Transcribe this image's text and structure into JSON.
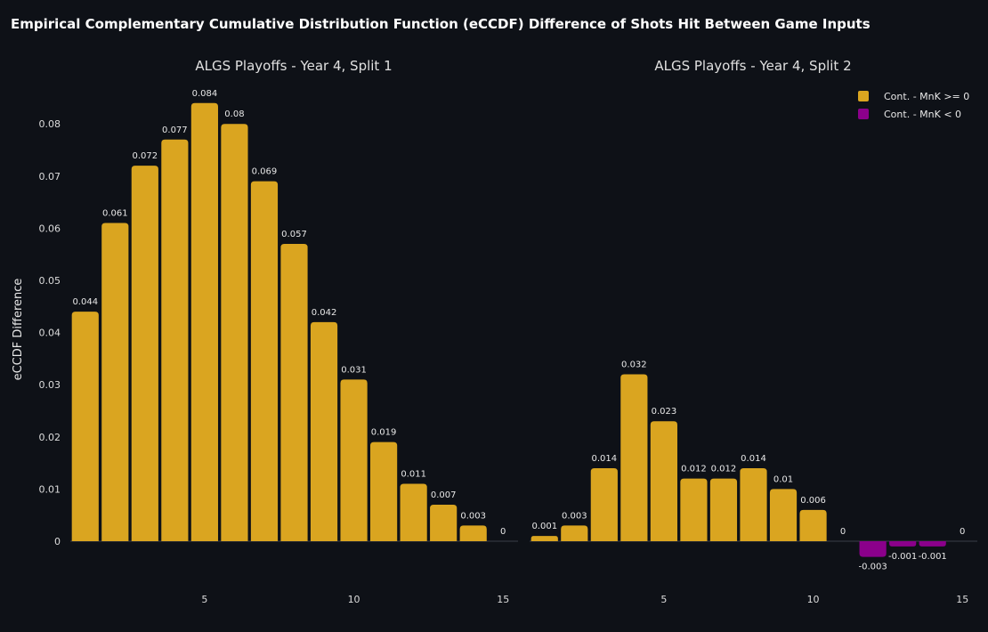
{
  "figure_title": "Empirical Complementary Cumulative Distribution Function (eCCDF) Difference of Shots Hit Between Game Inputs",
  "colors": {
    "background": "#0e1117",
    "positive": "#daa520",
    "negative": "#8b008b"
  },
  "legend": [
    {
      "label": "Cont. - MnK >= 0",
      "color": "#daa520"
    },
    {
      "label": "Cont. - MnK < 0",
      "color": "#8b008b"
    }
  ],
  "chart_data": [
    {
      "type": "bar",
      "title": "ALGS Playoffs - Year 4, Split 1",
      "ylabel": "eCCDF Difference",
      "x": [
        1,
        2,
        3,
        4,
        5,
        6,
        7,
        8,
        9,
        10,
        11,
        12,
        13,
        14,
        15
      ],
      "values": [
        0.044,
        0.061,
        0.072,
        0.077,
        0.084,
        0.08,
        0.069,
        0.057,
        0.042,
        0.031,
        0.019,
        0.011,
        0.007,
        0.003,
        0
      ],
      "value_labels": [
        "0.044",
        "0.061",
        "0.072",
        "0.077",
        "0.084",
        "0.08",
        "0.069",
        "0.057",
        "0.042",
        "0.031",
        "0.019",
        "0.011",
        "0.007",
        "0.003",
        "0"
      ],
      "xticks": [
        "5",
        "10",
        "15"
      ],
      "xtick_values": [
        5,
        10,
        15
      ],
      "yticks": [
        "0",
        "0.01",
        "0.02",
        "0.03",
        "0.04",
        "0.05",
        "0.06",
        "0.07",
        "0.08"
      ],
      "ytick_values": [
        0,
        0.01,
        0.02,
        0.03,
        0.04,
        0.05,
        0.06,
        0.07,
        0.08
      ],
      "ylim": [
        -0.006,
        0.087
      ],
      "xlim": [
        0.5,
        15.5
      ]
    },
    {
      "type": "bar",
      "title": "ALGS Playoffs - Year 4, Split 2",
      "ylabel": "",
      "x": [
        1,
        2,
        3,
        4,
        5,
        6,
        7,
        8,
        9,
        10,
        11,
        12,
        13,
        14,
        15
      ],
      "values": [
        0.001,
        0.003,
        0.014,
        0.032,
        0.023,
        0.012,
        0.012,
        0.014,
        0.01,
        0.006,
        0,
        -0.003,
        -0.001,
        -0.001,
        0
      ],
      "value_labels": [
        "0.001",
        "0.003",
        "0.014",
        "0.032",
        "0.023",
        "0.012",
        "0.012",
        "0.014",
        "0.01",
        "0.006",
        "0",
        "-0.003",
        "-0.001",
        "-0.001",
        "0"
      ],
      "xticks": [
        "5",
        "10",
        "15"
      ],
      "xtick_values": [
        5,
        10,
        15
      ],
      "yticks": [],
      "ytick_values": [],
      "ylim": [
        -0.006,
        0.087
      ],
      "xlim": [
        0.5,
        15.5
      ]
    }
  ]
}
